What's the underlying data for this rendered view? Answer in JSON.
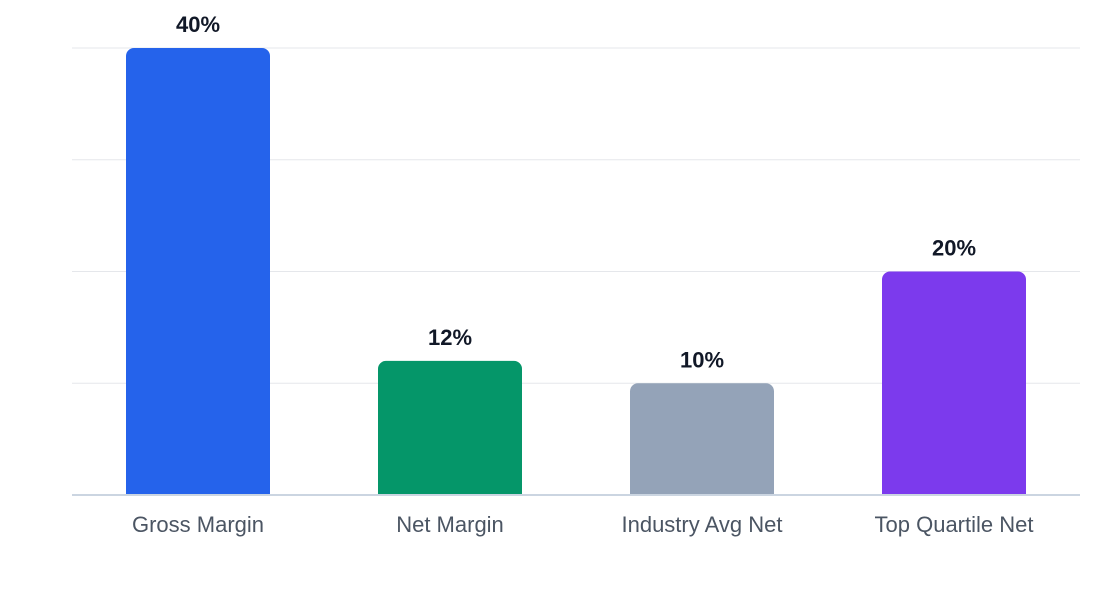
{
  "chart_data": {
    "type": "bar",
    "categories": [
      "Gross Margin",
      "Net Margin",
      "Industry Avg Net",
      "Top Quartile Net"
    ],
    "values": [
      40,
      12,
      10,
      20
    ],
    "value_labels": [
      "40%",
      "12%",
      "10%",
      "20%"
    ],
    "colors": [
      "#2563eb",
      "#059669",
      "#94a3b8",
      "#7c3aed"
    ],
    "title": "",
    "xlabel": "",
    "ylabel": "",
    "ylim": [
      0,
      40
    ],
    "grid": true,
    "gridline_values": [
      0,
      10,
      20,
      30,
      40
    ]
  }
}
